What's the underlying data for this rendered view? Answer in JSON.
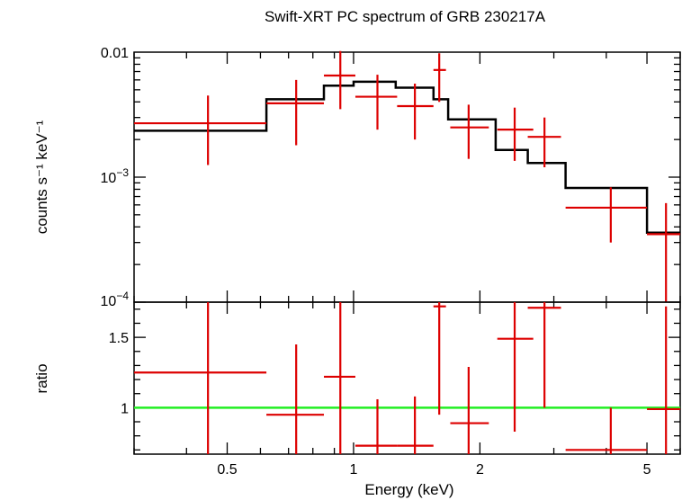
{
  "chart_data": {
    "type": "line",
    "title": "Swift-XRT PC spectrum of GRB 230217A",
    "xlabel": "Energy (keV)",
    "x_scale": "log",
    "xlim": [
      0.3,
      6.0
    ],
    "x_ticks": [
      {
        "value": 0.5,
        "label": "0.5"
      },
      {
        "value": 1,
        "label": "1"
      },
      {
        "value": 2,
        "label": "2"
      },
      {
        "value": 5,
        "label": "5"
      }
    ],
    "panels": [
      {
        "name": "spectrum",
        "ylabel": "counts s⁻¹ keV⁻¹",
        "y_scale": "log",
        "ylim": [
          0.0001,
          0.01
        ],
        "y_ticks": [
          {
            "value": 0.01,
            "label": "0.01",
            "base": "",
            "exp": ""
          },
          {
            "value": 0.001,
            "label": "",
            "base": "10",
            "exp": "−3"
          },
          {
            "value": 0.0001,
            "label": "",
            "base": "10",
            "exp": "−4"
          }
        ],
        "data": [
          {
            "x": 0.45,
            "xlo": 0.3,
            "xhi": 0.62,
            "y": 0.0027,
            "ylo": 0.00125,
            "yhi": 0.0045
          },
          {
            "x": 0.73,
            "xlo": 0.62,
            "xhi": 0.85,
            "y": 0.0039,
            "ylo": 0.0018,
            "yhi": 0.006
          },
          {
            "x": 0.93,
            "xlo": 0.85,
            "xhi": 1.01,
            "y": 0.0065,
            "ylo": 0.0035,
            "yhi": 0.0102
          },
          {
            "x": 1.14,
            "xlo": 1.01,
            "xhi": 1.27,
            "y": 0.0044,
            "ylo": 0.0024,
            "yhi": 0.0066
          },
          {
            "x": 1.4,
            "xlo": 1.27,
            "xhi": 1.55,
            "y": 0.0037,
            "ylo": 0.002,
            "yhi": 0.0056
          },
          {
            "x": 1.6,
            "xlo": 1.55,
            "xhi": 1.66,
            "y": 0.0072,
            "ylo": 0.004,
            "yhi": 0.0098
          },
          {
            "x": 1.88,
            "xlo": 1.7,
            "xhi": 2.1,
            "y": 0.0025,
            "ylo": 0.0014,
            "yhi": 0.0038
          },
          {
            "x": 2.42,
            "xlo": 2.2,
            "xhi": 2.68,
            "y": 0.0024,
            "ylo": 0.00135,
            "yhi": 0.0036
          },
          {
            "x": 2.85,
            "xlo": 2.6,
            "xhi": 3.12,
            "y": 0.0021,
            "ylo": 0.0012,
            "yhi": 0.003
          },
          {
            "x": 4.1,
            "xlo": 3.2,
            "xhi": 5.0,
            "y": 0.00057,
            "ylo": 0.0003,
            "yhi": 0.00083
          },
          {
            "x": 5.55,
            "xlo": 5.0,
            "xhi": 6.0,
            "y": 0.00035,
            "ylo": 0.0001,
            "yhi": 0.00062
          }
        ],
        "model_steps": [
          {
            "xlo": 0.3,
            "xhi": 0.62,
            "y": 0.00235
          },
          {
            "xlo": 0.62,
            "xhi": 0.85,
            "y": 0.0042
          },
          {
            "xlo": 0.85,
            "xhi": 1.0,
            "y": 0.0054
          },
          {
            "xlo": 1.0,
            "xhi": 1.26,
            "y": 0.0058
          },
          {
            "xlo": 1.26,
            "xhi": 1.55,
            "y": 0.0052
          },
          {
            "xlo": 1.55,
            "xhi": 1.68,
            "y": 0.0042
          },
          {
            "xlo": 1.68,
            "xhi": 2.18,
            "y": 0.0029
          },
          {
            "xlo": 2.18,
            "xhi": 2.6,
            "y": 0.00165
          },
          {
            "xlo": 2.6,
            "xhi": 3.2,
            "y": 0.0013
          },
          {
            "xlo": 3.2,
            "xhi": 5.0,
            "y": 0.00082
          },
          {
            "xlo": 5.0,
            "xhi": 6.0,
            "y": 0.00036
          }
        ]
      },
      {
        "name": "ratio",
        "ylabel": "ratio",
        "y_scale": "linear",
        "ylim": [
          0.67,
          1.75
        ],
        "y_ticks": [
          {
            "value": 1.5,
            "label": "1.5"
          },
          {
            "value": 1,
            "label": "1"
          }
        ],
        "reference_line": 1,
        "data": [
          {
            "x": 0.45,
            "xlo": 0.3,
            "xhi": 0.62,
            "y": 1.25,
            "ylo": 0.67,
            "yhi": 1.75
          },
          {
            "x": 0.73,
            "xlo": 0.62,
            "xhi": 0.85,
            "y": 0.95,
            "ylo": 0.67,
            "yhi": 1.45
          },
          {
            "x": 0.93,
            "xlo": 0.85,
            "xhi": 1.01,
            "y": 1.22,
            "ylo": 0.67,
            "yhi": 1.75
          },
          {
            "x": 1.14,
            "xlo": 1.01,
            "xhi": 1.27,
            "y": 0.73,
            "ylo": 0.67,
            "yhi": 1.06
          },
          {
            "x": 1.4,
            "xlo": 1.27,
            "xhi": 1.55,
            "y": 0.73,
            "ylo": 0.67,
            "yhi": 1.08
          },
          {
            "x": 1.6,
            "xlo": 1.55,
            "xhi": 1.66,
            "y": 1.72,
            "ylo": 0.95,
            "yhi": 1.75
          },
          {
            "x": 1.88,
            "xlo": 1.7,
            "xhi": 2.1,
            "y": 0.89,
            "ylo": 0.67,
            "yhi": 1.29
          },
          {
            "x": 2.42,
            "xlo": 2.2,
            "xhi": 2.68,
            "y": 1.49,
            "ylo": 0.83,
            "yhi": 1.75
          },
          {
            "x": 2.85,
            "xlo": 2.6,
            "xhi": 3.12,
            "y": 1.71,
            "ylo": 1.0,
            "yhi": 1.75
          },
          {
            "x": 4.1,
            "xlo": 3.2,
            "xhi": 5.0,
            "y": 0.7,
            "ylo": 0.67,
            "yhi": 1.0
          },
          {
            "x": 5.55,
            "xlo": 5.0,
            "xhi": 6.0,
            "y": 0.99,
            "ylo": 0.67,
            "yhi": 1.72
          }
        ]
      }
    ],
    "colors": {
      "data": "#dd0000",
      "model": "#000000",
      "reference": "#22ee22"
    }
  }
}
